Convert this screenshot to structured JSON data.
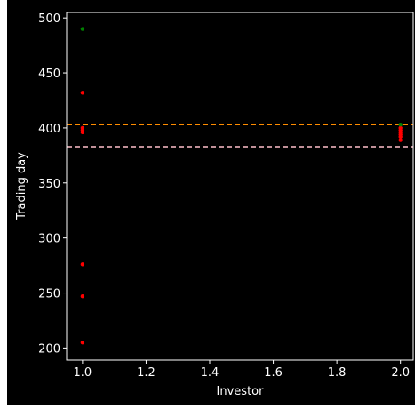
{
  "chart_data": {
    "type": "scatter",
    "title": "",
    "xlabel": "Investor",
    "ylabel": "Trading day",
    "xlim": [
      0.95,
      2.04
    ],
    "ylim": [
      189,
      505
    ],
    "xticks": [
      1.0,
      1.2,
      1.4,
      1.6,
      1.8,
      2.0
    ],
    "xtick_labels": [
      "1.0",
      "1.2",
      "1.4",
      "1.6",
      "1.8",
      "2.0"
    ],
    "yticks": [
      200,
      250,
      300,
      350,
      400,
      450,
      500
    ],
    "ytick_labels": [
      "200",
      "250",
      "300",
      "350",
      "400",
      "450",
      "500"
    ],
    "grid": false,
    "legend": null,
    "series": [
      {
        "color": "#ff0000",
        "points": [
          {
            "x": 1.0,
            "y": 432
          },
          {
            "x": 1.0,
            "y": 400
          },
          {
            "x": 1.0,
            "y": 398
          },
          {
            "x": 1.0,
            "y": 396
          },
          {
            "x": 1.0,
            "y": 276
          },
          {
            "x": 1.0,
            "y": 247
          },
          {
            "x": 1.0,
            "y": 205
          },
          {
            "x": 2.0,
            "y": 400
          },
          {
            "x": 2.0,
            "y": 398
          },
          {
            "x": 2.0,
            "y": 396
          },
          {
            "x": 2.0,
            "y": 394
          },
          {
            "x": 2.0,
            "y": 392
          },
          {
            "x": 2.0,
            "y": 389
          }
        ]
      },
      {
        "color": "#008000",
        "points": [
          {
            "x": 1.0,
            "y": 490
          },
          {
            "x": 2.0,
            "y": 403
          }
        ]
      }
    ],
    "hlines": [
      {
        "y": 403,
        "color": "#ff8c00",
        "style": "dashed"
      },
      {
        "y": 383,
        "color": "#ffc0cb",
        "style": "dashed"
      }
    ],
    "colors": {
      "background": "#000000",
      "axes": "#ffffff",
      "text": "#ffffff"
    }
  }
}
